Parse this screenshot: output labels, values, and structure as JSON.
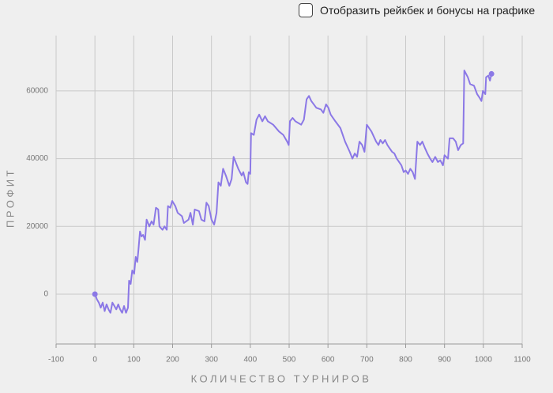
{
  "toggle_label": "Отобразить рейкбек и бонусы на графике",
  "chart_data": {
    "type": "line",
    "xlabel": "КОЛИЧЕСТВО ТУРНИРОВ",
    "ylabel": "ПРОФИТ",
    "xlim": [
      -100,
      1100
    ],
    "ylim": [
      -14700,
      76300
    ],
    "xticks": [
      -100,
      0,
      100,
      200,
      300,
      400,
      500,
      600,
      700,
      800,
      900,
      1000,
      1100
    ],
    "yticks": [
      0,
      20000,
      40000,
      60000
    ],
    "grid": true,
    "endpoint_markers": true,
    "series": [
      {
        "color": "#8b78e6",
        "x": [
          0,
          5,
          10,
          15,
          20,
          25,
          30,
          35,
          40,
          45,
          50,
          55,
          60,
          65,
          70,
          75,
          80,
          85,
          88,
          92,
          96,
          101,
          105,
          109,
          112,
          116,
          120,
          124,
          129,
          133,
          140,
          146,
          151,
          157,
          163,
          166,
          174,
          179,
          185,
          188,
          194,
          199,
          207,
          213,
          224,
          229,
          241,
          246,
          252,
          257,
          268,
          274,
          282,
          287,
          293,
          300,
          307,
          313,
          318,
          324,
          330,
          337,
          346,
          352,
          357,
          369,
          378,
          382,
          389,
          393,
          396,
          400,
          402,
          409,
          416,
          423,
          431,
          438,
          445,
          459,
          474,
          485,
          495,
          499,
          502,
          509,
          516,
          531,
          538,
          545,
          551,
          557,
          570,
          582,
          588,
          595,
          601,
          607,
          619,
          632,
          644,
          656,
          663,
          669,
          675,
          681,
          688,
          694,
          700,
          712,
          724,
          730,
          735,
          741,
          747,
          753,
          759,
          765,
          771,
          777,
          789,
          795,
          800,
          806,
          812,
          818,
          824,
          830,
          837,
          843,
          850,
          856,
          863,
          869,
          876,
          883,
          889,
          896,
          900,
          909,
          913,
          922,
          929,
          935,
          942,
          948,
          951,
          960,
          966,
          976,
          984,
          990,
          995,
          999,
          1005,
          1007,
          1013,
          1017,
          1021
        ],
        "values": [
          0,
          -1500,
          -2500,
          -4000,
          -2500,
          -5000,
          -3000,
          -4500,
          -5500,
          -2500,
          -3500,
          -4500,
          -3000,
          -4500,
          -5500,
          -3500,
          -5500,
          -4000,
          4000,
          3000,
          7000,
          6000,
          11000,
          9500,
          13000,
          18500,
          17000,
          17500,
          16000,
          22000,
          20000,
          21500,
          20500,
          25500,
          25000,
          20000,
          19000,
          20000,
          19000,
          26000,
          25500,
          27500,
          26000,
          24000,
          23000,
          21000,
          22000,
          24000,
          20500,
          25000,
          24500,
          22000,
          21500,
          27000,
          26000,
          22000,
          20500,
          24000,
          33000,
          32000,
          37000,
          35000,
          32000,
          34000,
          40500,
          37000,
          35000,
          36000,
          33000,
          32500,
          36000,
          35500,
          47500,
          47000,
          51500,
          53000,
          51000,
          52500,
          51000,
          50000,
          48000,
          47000,
          45000,
          44000,
          51000,
          52000,
          51000,
          50000,
          51500,
          57500,
          58500,
          57000,
          55000,
          54500,
          53500,
          56000,
          55000,
          53000,
          51000,
          49000,
          45000,
          42000,
          40000,
          41500,
          40500,
          45000,
          44000,
          42000,
          50000,
          48000,
          45000,
          44000,
          45500,
          44500,
          45500,
          44000,
          43000,
          42000,
          41500,
          40000,
          38000,
          36000,
          36500,
          35500,
          37000,
          36000,
          34000,
          45000,
          44000,
          45000,
          43000,
          41500,
          40000,
          39000,
          40500,
          39000,
          39500,
          38000,
          41000,
          40000,
          46000,
          46000,
          45000,
          42500,
          44000,
          44500,
          66000,
          64000,
          62000,
          61500,
          59000,
          58000,
          57000,
          60000,
          59000,
          64000,
          64500,
          63000,
          65000
        ]
      }
    ]
  }
}
